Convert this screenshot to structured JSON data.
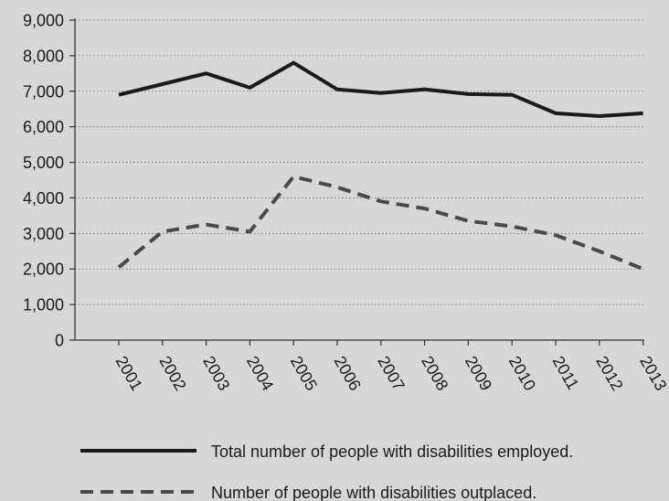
{
  "chart_data": {
    "type": "line",
    "categories": [
      "2001",
      "2002",
      "2003",
      "2004",
      "2005",
      "2006",
      "2007",
      "2008",
      "2009",
      "2010",
      "2011",
      "2012",
      "2013"
    ],
    "ylim": [
      0,
      9000
    ],
    "yticks": [
      "0",
      "1,000",
      "2,000",
      "3,000",
      "4,000",
      "5,000",
      "6,000",
      "7,000",
      "8,000",
      "9,000"
    ],
    "grid": true,
    "legend_position": "bottom",
    "series": [
      {
        "name": "Total number of people with disabilities employed.",
        "style": "solid",
        "color": "#1a1a1a",
        "values": [
          6900,
          7200,
          7500,
          7100,
          7800,
          7050,
          6950,
          7050,
          6920,
          6900,
          6380,
          6300,
          6380
        ]
      },
      {
        "name": "Number of people with disabilities outplaced.",
        "style": "dashed",
        "color": "#4a4a4a",
        "values": [
          2050,
          3050,
          3250,
          3050,
          4600,
          4300,
          3900,
          3700,
          3350,
          3200,
          2950,
          2500,
          2000
        ]
      }
    ]
  }
}
